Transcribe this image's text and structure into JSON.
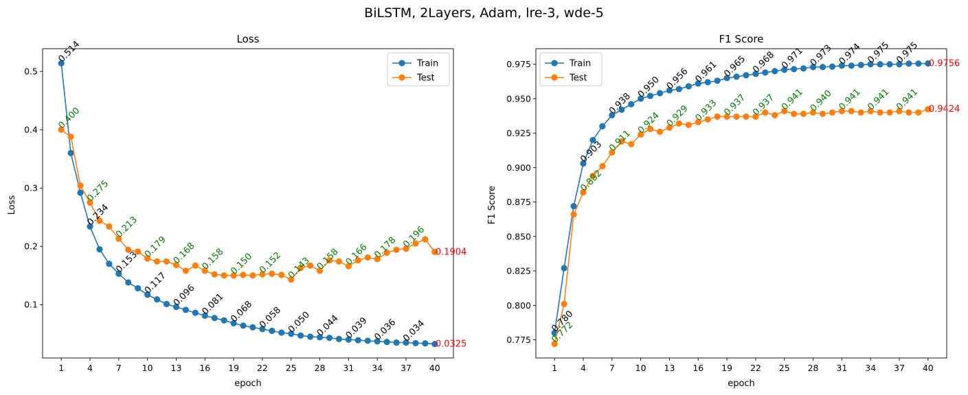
{
  "figure": {
    "title": "BiLSTM, 2Layers, Adam, lre-3, wde-5"
  },
  "colors": {
    "train": "#1f77b4",
    "test": "#ff7f0e",
    "train_label": "#000000",
    "test_label": "#008000",
    "final_label": "#ff0000"
  },
  "chart_data": [
    {
      "type": "line",
      "title": "Loss",
      "xlabel": "epoch",
      "ylabel": "Loss",
      "xlim": [
        -0.95,
        41.95
      ],
      "ylim": [
        0.0085,
        0.539
      ],
      "xticks": [
        1,
        4,
        7,
        10,
        13,
        16,
        19,
        22,
        25,
        28,
        31,
        34,
        37,
        40
      ],
      "yticks": [
        0.1,
        0.2,
        0.3,
        0.4,
        0.5
      ],
      "ytick_labels": [
        "0.1",
        "0.2",
        "0.3",
        "0.4",
        "0.5"
      ],
      "legend_position": "upper right",
      "grid": false,
      "x": [
        1,
        2,
        3,
        4,
        5,
        6,
        7,
        8,
        9,
        10,
        11,
        12,
        13,
        14,
        15,
        16,
        17,
        18,
        19,
        20,
        21,
        22,
        23,
        24,
        25,
        26,
        27,
        28,
        29,
        30,
        31,
        32,
        33,
        34,
        35,
        36,
        37,
        38,
        39,
        40
      ],
      "series": [
        {
          "name": "Train",
          "values": [
            0.514,
            0.36,
            0.292,
            0.234,
            0.195,
            0.17,
            0.153,
            0.138,
            0.128,
            0.117,
            0.109,
            0.101,
            0.096,
            0.091,
            0.086,
            0.081,
            0.077,
            0.073,
            0.068,
            0.064,
            0.061,
            0.058,
            0.055,
            0.052,
            0.05,
            0.047,
            0.045,
            0.044,
            0.043,
            0.041,
            0.04,
            0.039,
            0.038,
            0.037,
            0.036,
            0.035,
            0.035,
            0.034,
            0.0335,
            0.0325
          ],
          "annotations": [
            {
              "x": 1,
              "text": "0.514"
            },
            {
              "x": 4,
              "text": "0.234"
            },
            {
              "x": 7,
              "text": "0.153"
            },
            {
              "x": 10,
              "text": "0.117"
            },
            {
              "x": 13,
              "text": "0.096"
            },
            {
              "x": 16,
              "text": "0.081"
            },
            {
              "x": 19,
              "text": "0.068"
            },
            {
              "x": 22,
              "text": "0.058"
            },
            {
              "x": 25,
              "text": "0.050"
            },
            {
              "x": 28,
              "text": "0.044"
            },
            {
              "x": 31,
              "text": "0.039"
            },
            {
              "x": 34,
              "text": "0.036"
            },
            {
              "x": 37,
              "text": "0.034"
            }
          ],
          "final_annotation": {
            "x": 40,
            "text": "0.0325"
          }
        },
        {
          "name": "Test",
          "values": [
            0.4,
            0.388,
            0.304,
            0.275,
            0.244,
            0.234,
            0.213,
            0.194,
            0.191,
            0.179,
            0.174,
            0.174,
            0.168,
            0.158,
            0.167,
            0.158,
            0.152,
            0.15,
            0.15,
            0.151,
            0.15,
            0.152,
            0.153,
            0.151,
            0.143,
            0.163,
            0.167,
            0.158,
            0.176,
            0.174,
            0.166,
            0.176,
            0.181,
            0.178,
            0.189,
            0.194,
            0.196,
            0.205,
            0.212,
            0.1904
          ],
          "annotations": [
            {
              "x": 1,
              "text": "0.400"
            },
            {
              "x": 4,
              "text": "0.275"
            },
            {
              "x": 7,
              "text": "0.213"
            },
            {
              "x": 10,
              "text": "0.179"
            },
            {
              "x": 13,
              "text": "0.168"
            },
            {
              "x": 16,
              "text": "0.158"
            },
            {
              "x": 19,
              "text": "0.150"
            },
            {
              "x": 22,
              "text": "0.152"
            },
            {
              "x": 25,
              "text": "0.143"
            },
            {
              "x": 28,
              "text": "0.158"
            },
            {
              "x": 31,
              "text": "0.166"
            },
            {
              "x": 34,
              "text": "0.178"
            },
            {
              "x": 37,
              "text": "0.196"
            }
          ],
          "final_annotation": {
            "x": 40,
            "text": "0.1904"
          }
        }
      ]
    },
    {
      "type": "line",
      "title": "F1 Score",
      "xlabel": "epoch",
      "ylabel": "F1 Score",
      "xlim": [
        -0.95,
        41.95
      ],
      "ylim": [
        0.7618,
        0.9863
      ],
      "xticks": [
        1,
        4,
        7,
        10,
        13,
        16,
        19,
        22,
        25,
        28,
        31,
        34,
        37,
        40
      ],
      "yticks": [
        0.775,
        0.8,
        0.825,
        0.85,
        0.875,
        0.9,
        0.925,
        0.95,
        0.975
      ],
      "ytick_labels": [
        "0.775",
        "0.800",
        "0.825",
        "0.850",
        "0.875",
        "0.900",
        "0.925",
        "0.950",
        "0.975"
      ],
      "legend_position": "upper left",
      "grid": false,
      "x": [
        1,
        2,
        3,
        4,
        5,
        6,
        7,
        8,
        9,
        10,
        11,
        12,
        13,
        14,
        15,
        16,
        17,
        18,
        19,
        20,
        21,
        22,
        23,
        24,
        25,
        26,
        27,
        28,
        29,
        30,
        31,
        32,
        33,
        34,
        35,
        36,
        37,
        38,
        39,
        40
      ],
      "series": [
        {
          "name": "Train",
          "values": [
            0.78,
            0.827,
            0.872,
            0.903,
            0.92,
            0.93,
            0.938,
            0.942,
            0.946,
            0.95,
            0.952,
            0.954,
            0.956,
            0.957,
            0.959,
            0.961,
            0.962,
            0.963,
            0.965,
            0.966,
            0.967,
            0.968,
            0.969,
            0.97,
            0.971,
            0.9715,
            0.972,
            0.973,
            0.973,
            0.9733,
            0.974,
            0.974,
            0.9745,
            0.975,
            0.975,
            0.975,
            0.975,
            0.9755,
            0.9755,
            0.9756
          ],
          "annotations": [
            {
              "x": 1,
              "text": "0.780"
            },
            {
              "x": 4,
              "text": "0.903"
            },
            {
              "x": 7,
              "text": "0.938"
            },
            {
              "x": 10,
              "text": "0.950"
            },
            {
              "x": 13,
              "text": "0.956"
            },
            {
              "x": 16,
              "text": "0.961"
            },
            {
              "x": 19,
              "text": "0.965"
            },
            {
              "x": 22,
              "text": "0.968"
            },
            {
              "x": 25,
              "text": "0.971"
            },
            {
              "x": 28,
              "text": "0.973"
            },
            {
              "x": 31,
              "text": "0.974"
            },
            {
              "x": 34,
              "text": "0.975"
            },
            {
              "x": 37,
              "text": "0.975"
            }
          ],
          "final_annotation": {
            "x": 40,
            "text": "0.9756"
          }
        },
        {
          "name": "Test",
          "values": [
            0.772,
            0.801,
            0.866,
            0.882,
            0.894,
            0.901,
            0.911,
            0.919,
            0.917,
            0.924,
            0.928,
            0.926,
            0.929,
            0.932,
            0.931,
            0.933,
            0.935,
            0.937,
            0.937,
            0.937,
            0.937,
            0.937,
            0.94,
            0.938,
            0.941,
            0.939,
            0.939,
            0.94,
            0.939,
            0.94,
            0.941,
            0.941,
            0.94,
            0.941,
            0.94,
            0.94,
            0.941,
            0.94,
            0.94,
            0.9424
          ],
          "annotations": [
            {
              "x": 1,
              "text": "0.772"
            },
            {
              "x": 4,
              "text": "0.882"
            },
            {
              "x": 7,
              "text": "0.911"
            },
            {
              "x": 10,
              "text": "0.924"
            },
            {
              "x": 13,
              "text": "0.929"
            },
            {
              "x": 16,
              "text": "0.933"
            },
            {
              "x": 19,
              "text": "0.937"
            },
            {
              "x": 22,
              "text": "0.937"
            },
            {
              "x": 25,
              "text": "0.941"
            },
            {
              "x": 28,
              "text": "0.940"
            },
            {
              "x": 31,
              "text": "0.941"
            },
            {
              "x": 34,
              "text": "0.941"
            },
            {
              "x": 37,
              "text": "0.941"
            }
          ],
          "final_annotation": {
            "x": 40,
            "text": "0.9424"
          }
        }
      ]
    }
  ]
}
